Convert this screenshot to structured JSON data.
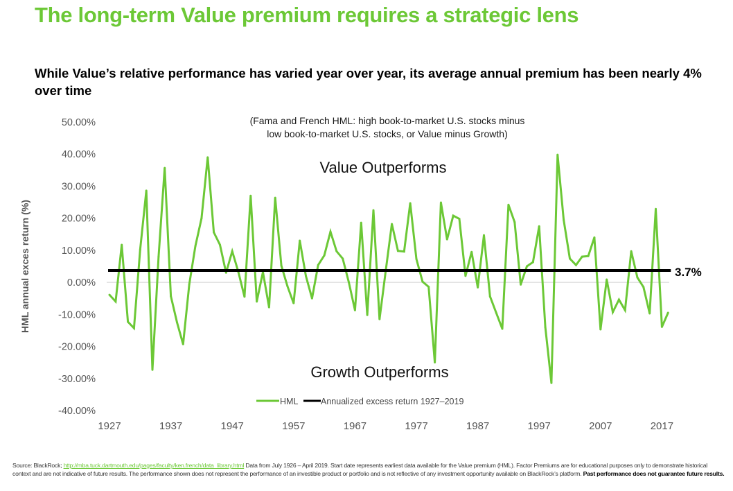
{
  "header": {
    "title": "The long-term Value premium requires a strategic lens",
    "subtitle": "While Value’s relative performance has varied year over year, its average annual premium has been nearly 4% over time"
  },
  "chart_data": {
    "type": "line",
    "title": "(Fama and French HML: high book-to-market U.S. stocks minus low book-to-market U.S. stocks, or Value minus Growth)",
    "note_lines": [
      "(Fama and French HML: high book-to-market U.S. stocks minus",
      "low book-to-market U.S. stocks, or Value minus Growth)"
    ],
    "xlabel": "",
    "ylabel": "HML annual exces return (%)",
    "xlim": [
      1927,
      2018
    ],
    "ylim": [
      -40,
      50
    ],
    "grid": "zero-line only",
    "x_ticks": [
      "1927",
      "1937",
      "1947",
      "1957",
      "1967",
      "1977",
      "1987",
      "1997",
      "2007",
      "2017"
    ],
    "y_ticks": [
      "50.00%",
      "40.00%",
      "30.00%",
      "20.00%",
      "10.00%",
      "0.00%",
      "-10.00%",
      "-20.00%",
      "-30.00%",
      "-40.00%"
    ],
    "annotations": {
      "top": "Value Outperforms",
      "bottom": "Growth Outperforms",
      "average_label": "3.7%"
    },
    "legend": {
      "placement": "bottom-center",
      "entries": [
        {
          "name": "HML",
          "color": "#6cc836"
        },
        {
          "name": "Annualized excess return 1927–2019",
          "color": "#000000"
        }
      ]
    },
    "series": [
      {
        "name": "HML",
        "color": "#6cc836",
        "x": [
          1927,
          1928,
          1929,
          1930,
          1931,
          1932,
          1933,
          1934,
          1935,
          1936,
          1937,
          1938,
          1939,
          1940,
          1941,
          1942,
          1943,
          1944,
          1945,
          1946,
          1947,
          1948,
          1949,
          1950,
          1951,
          1952,
          1953,
          1954,
          1955,
          1956,
          1957,
          1958,
          1959,
          1960,
          1961,
          1962,
          1963,
          1964,
          1965,
          1966,
          1967,
          1968,
          1969,
          1970,
          1971,
          1972,
          1973,
          1974,
          1975,
          1976,
          1977,
          1978,
          1979,
          1980,
          1981,
          1982,
          1983,
          1984,
          1985,
          1986,
          1987,
          1988,
          1989,
          1990,
          1991,
          1992,
          1993,
          1994,
          1995,
          1996,
          1997,
          1998,
          1999,
          2000,
          2001,
          2002,
          2003,
          2004,
          2005,
          2006,
          2007,
          2008,
          2009,
          2010,
          2011,
          2012,
          2013,
          2014,
          2015,
          2016,
          2017,
          2018
        ],
        "values": [
          -3.9,
          -6.0,
          11.7,
          -12.3,
          -14.3,
          10.2,
          28.6,
          -27.3,
          8.0,
          35.7,
          -4.3,
          -12.5,
          -19.3,
          -0.6,
          11.3,
          20.0,
          39.0,
          15.6,
          11.7,
          3.0,
          9.7,
          3.2,
          -4.5,
          27.0,
          -6.0,
          3.2,
          -7.8,
          26.4,
          5.2,
          -1.2,
          -6.5,
          13.0,
          2.0,
          -5.0,
          5.4,
          8.4,
          15.8,
          9.7,
          7.4,
          0.0,
          -8.7,
          18.6,
          -10.2,
          22.5,
          -11.5,
          3.5,
          18.2,
          9.8,
          9.6,
          24.7,
          7.3,
          0.2,
          -1.4,
          -25.0,
          24.9,
          13.4,
          20.8,
          19.8,
          2.0,
          9.5,
          -1.6,
          14.7,
          -4.4,
          -9.5,
          -14.5,
          24.2,
          18.8,
          -0.7,
          5.0,
          6.3,
          17.5,
          -14.0,
          -31.4,
          39.8,
          19.5,
          7.4,
          5.4,
          8.0,
          8.2,
          14.0,
          -14.7,
          0.9,
          -9.3,
          -5.4,
          -8.7,
          9.7,
          1.5,
          -1.5,
          -9.7,
          22.9,
          -13.9,
          -9.5
        ]
      },
      {
        "name": "Annualized excess return 1927–2019",
        "color": "#000000",
        "x": [
          1927,
          2018
        ],
        "values": [
          3.7,
          3.7
        ]
      }
    ]
  },
  "footer": {
    "source_prefix": "Source: BlackRock; ",
    "source_link": "http://mba.tuck.dartmouth.edu/pages/faculty/ken.french/data_library.html",
    "disclaimer": " Data from July 1926 – April 2019. Start date represents earliest data available for the Value premium (HML). Factor Premiums are for educational purposes only to demonstrate historical context and are not indicative of future results. The performance shown does not represent the performance of an investible product or portfolio and is not reflective of any investment opportunity available on BlackRock’s platform. ",
    "bold_warning": "Past performance does not guarantee future results."
  }
}
